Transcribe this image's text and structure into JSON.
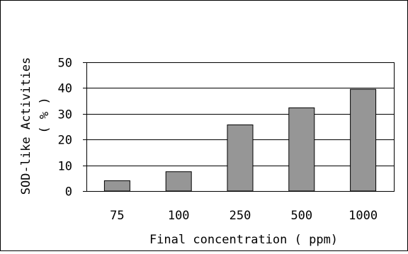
{
  "chart_data": {
    "type": "bar",
    "categories": [
      "75",
      "100",
      "250",
      "500",
      "1000"
    ],
    "values": [
      4,
      7.5,
      25.7,
      32.3,
      39.5
    ],
    "xlabel": "Final concentration ( ppm)",
    "ylabel": [
      "SOD-like Activities",
      "( % )"
    ],
    "ylim": [
      0,
      50
    ],
    "yticks": [
      0,
      10,
      20,
      30,
      40,
      50
    ],
    "grid": true,
    "legend": "none",
    "colors": {
      "bar_fill": "#969696",
      "bar_stroke": "#000000",
      "grid": "#000000",
      "plot_border": "#000000",
      "background": "#ffffff"
    }
  }
}
